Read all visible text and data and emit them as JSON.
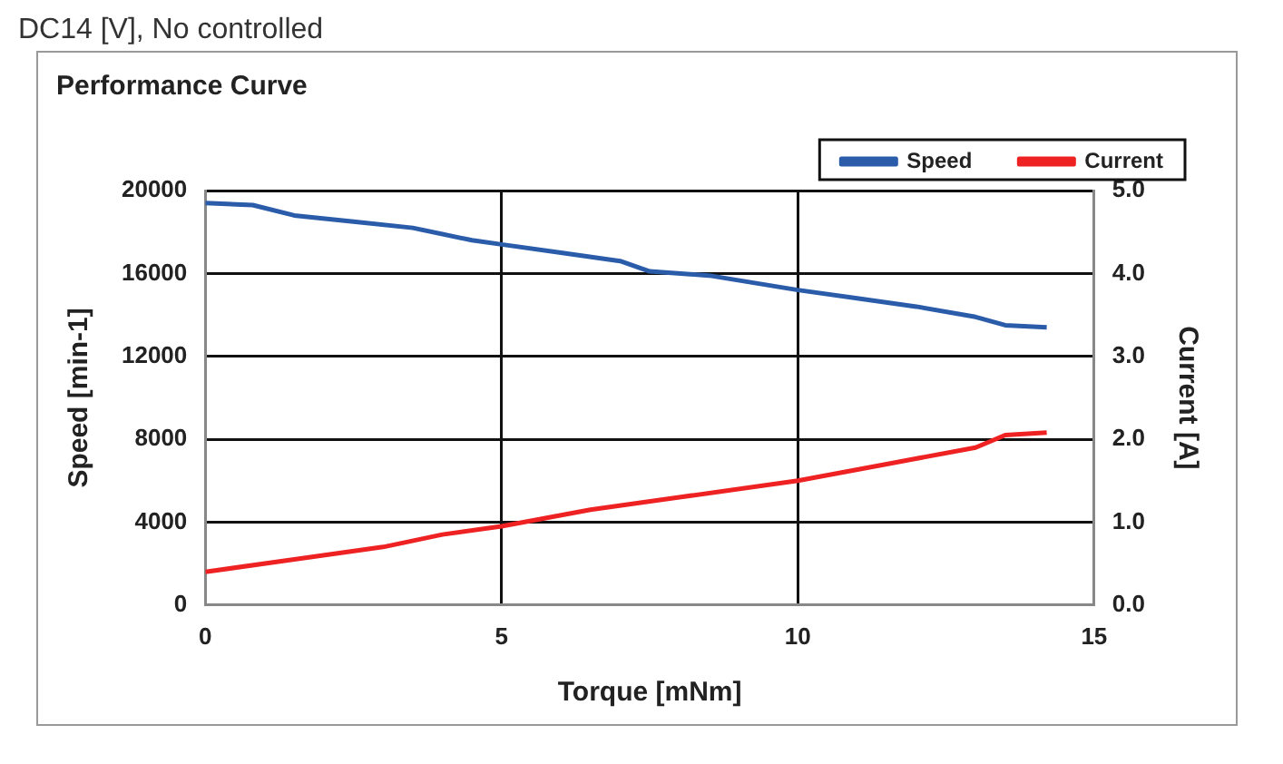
{
  "chart_data": {
    "type": "line",
    "title": "Performance Curve",
    "xlabel": "Torque [mNm]",
    "ylabel": "Speed [min-1]",
    "y2label": "Current [A]",
    "annotations": [
      "DC14 [V], No controlled"
    ],
    "series": [
      {
        "name": "Speed",
        "color": "#2a5caa",
        "x": [
          0,
          0.8,
          1.5,
          2.5,
          3.5,
          4.5,
          5,
          6,
          7,
          7.5,
          8.5,
          10,
          11,
          12,
          13,
          13.5,
          14.2
        ],
        "values": [
          19400,
          19300,
          18800,
          18500,
          18200,
          17600,
          17400,
          17000,
          16600,
          16100,
          15900,
          15200,
          14800,
          14400,
          13900,
          13500,
          13400
        ]
      },
      {
        "name": "Current",
        "color": "#ee2222",
        "axis": "y2",
        "x": [
          0,
          1.5,
          3,
          4,
          5,
          6.5,
          8,
          10,
          11.5,
          13,
          13.5,
          14.2
        ],
        "values": [
          0.4,
          0.55,
          0.7,
          0.85,
          0.95,
          1.15,
          1.3,
          1.5,
          1.7,
          1.9,
          2.05,
          2.08
        ]
      }
    ],
    "xlim": [
      0,
      15
    ],
    "xticks": [
      0,
      5,
      10,
      15
    ],
    "ylim": [
      0,
      20000
    ],
    "yticks": [
      0,
      4000,
      8000,
      12000,
      16000,
      20000
    ],
    "y2lim": [
      0,
      5
    ],
    "y2ticks": [
      {
        "value": 0,
        "label": "0.0"
      },
      {
        "value": 1,
        "label": "1.0"
      },
      {
        "value": 2,
        "label": "2.0"
      },
      {
        "value": 3,
        "label": "3.0"
      },
      {
        "value": 4,
        "label": "4.0"
      },
      {
        "value": 5,
        "label": "5.0"
      }
    ],
    "grid": true,
    "legend": "top right",
    "marker": "none",
    "line_style": "solid"
  }
}
